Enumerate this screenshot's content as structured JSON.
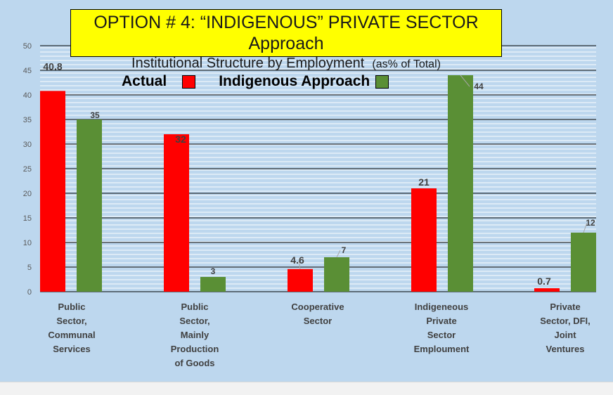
{
  "chart_data": {
    "type": "bar",
    "title": "OPTION # 4: “INDIGENOUS” PRIVATE SECTOR Approach",
    "subtitle": "Institutional Structure by Employment",
    "subtitle_note": "(as% of Total)",
    "categories": [
      "Public\nSector,\nCommunal\nServices",
      "Public\nSector,\nMainly\nProduction\nof Goods",
      "Cooperative\nSector",
      "Indigeneous\nPrivate\nSector\nEmploument",
      "Private\nSector, DFI,\nJoint\nVentures"
    ],
    "series": [
      {
        "name": "Actual",
        "color": "#ff0000",
        "values": [
          40.8,
          32,
          4.6,
          21,
          0.7
        ],
        "labels": [
          "40.8",
          "32",
          "4.6",
          "21",
          "0.7"
        ]
      },
      {
        "name": "Indigenous Approach",
        "color": "#5a8f35",
        "values": [
          35,
          3,
          7,
          44,
          12
        ],
        "labels": [
          "35",
          "3",
          "7",
          "44",
          "12"
        ]
      }
    ],
    "ylim": [
      0,
      50
    ],
    "yticks": [
      "0",
      "5",
      "10",
      "15",
      "20",
      "25",
      "30",
      "35",
      "40",
      "45",
      "50"
    ],
    "grid": true,
    "legend_position": "top-left",
    "colors": {
      "background": "#bdd7ee",
      "title_box": "#ffff00",
      "actual": "#ff0000",
      "indigenous": "#5a8f35"
    }
  }
}
